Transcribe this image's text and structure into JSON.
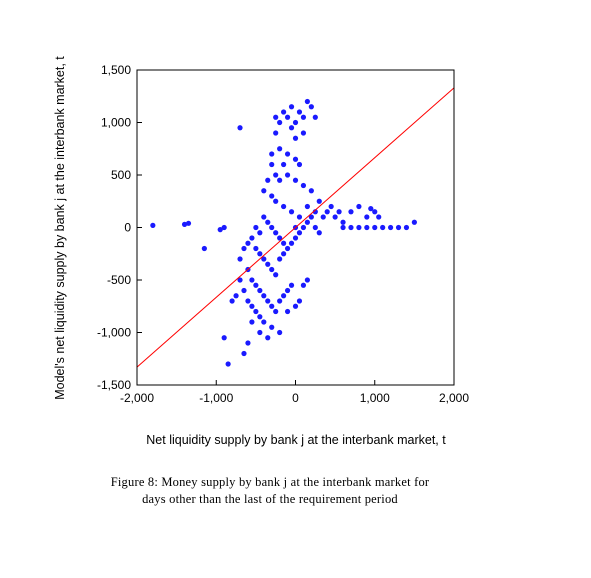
{
  "chart_data": {
    "type": "scatter",
    "title": "",
    "xlabel": "Net liquidity supply by bank j at the interbank market, t",
    "ylabel": "Model's net liquidity supply by bank j at the interbank market, t",
    "xlim": [
      -2000,
      2000
    ],
    "ylim": [
      -1500,
      1500
    ],
    "xticks": [
      -2000,
      -1000,
      0,
      1000,
      2000
    ],
    "xtick_labels": [
      "-2,000",
      "-1,000",
      "0",
      "1,000",
      "2,000"
    ],
    "yticks": [
      -1500,
      -1000,
      -500,
      0,
      500,
      1000,
      1500
    ],
    "ytick_labels": [
      "-1,500",
      "-1,000",
      "-500",
      "0",
      "500",
      "1,000",
      "1,500"
    ],
    "grid": false,
    "marker_color": "#1a1aff",
    "line_color": "#ff0000",
    "reference_line": {
      "x": [
        -2000,
        2000
      ],
      "y": [
        -1330,
        1330
      ]
    },
    "points": [
      [
        -1800,
        20
      ],
      [
        -1400,
        30
      ],
      [
        -1350,
        40
      ],
      [
        -1150,
        -200
      ],
      [
        -900,
        -1050
      ],
      [
        -850,
        -1300
      ],
      [
        -700,
        950
      ],
      [
        -650,
        -1200
      ],
      [
        -600,
        -1100
      ],
      [
        -550,
        -900
      ],
      [
        -900,
        0
      ],
      [
        -950,
        -20
      ],
      [
        -200,
        1000
      ],
      [
        -150,
        1100
      ],
      [
        -100,
        1050
      ],
      [
        0,
        1000
      ],
      [
        50,
        1100
      ],
      [
        100,
        1050
      ],
      [
        150,
        1200
      ],
      [
        200,
        1150
      ],
      [
        -50,
        950
      ],
      [
        -250,
        900
      ],
      [
        0,
        850
      ],
      [
        100,
        900
      ],
      [
        -300,
        700
      ],
      [
        -200,
        750
      ],
      [
        -100,
        700
      ],
      [
        0,
        650
      ],
      [
        -150,
        600
      ],
      [
        50,
        600
      ],
      [
        -250,
        500
      ],
      [
        -200,
        450
      ],
      [
        -100,
        500
      ],
      [
        0,
        450
      ],
      [
        100,
        400
      ],
      [
        200,
        350
      ],
      [
        -300,
        300
      ],
      [
        -250,
        250
      ],
      [
        -150,
        200
      ],
      [
        -50,
        150
      ],
      [
        50,
        100
      ],
      [
        150,
        200
      ],
      [
        250,
        150
      ],
      [
        300,
        250
      ],
      [
        350,
        100
      ],
      [
        400,
        150
      ],
      [
        450,
        200
      ],
      [
        500,
        100
      ],
      [
        550,
        150
      ],
      [
        600,
        50
      ],
      [
        700,
        150
      ],
      [
        800,
        200
      ],
      [
        900,
        100
      ],
      [
        1000,
        150
      ],
      [
        600,
        0
      ],
      [
        700,
        0
      ],
      [
        800,
        0
      ],
      [
        900,
        0
      ],
      [
        1000,
        0
      ],
      [
        1100,
        0
      ],
      [
        1200,
        0
      ],
      [
        1300,
        0
      ],
      [
        1400,
        0
      ],
      [
        1500,
        50
      ],
      [
        1050,
        100
      ],
      [
        950,
        180
      ],
      [
        -400,
        100
      ],
      [
        -350,
        50
      ],
      [
        -300,
        0
      ],
      [
        -250,
        -50
      ],
      [
        -200,
        -100
      ],
      [
        -150,
        -150
      ],
      [
        -500,
        -200
      ],
      [
        -450,
        -250
      ],
      [
        -400,
        -300
      ],
      [
        -350,
        -350
      ],
      [
        -300,
        -400
      ],
      [
        -250,
        -450
      ],
      [
        -600,
        -400
      ],
      [
        -550,
        -500
      ],
      [
        -500,
        -550
      ],
      [
        -450,
        -600
      ],
      [
        -400,
        -650
      ],
      [
        -350,
        -700
      ],
      [
        -650,
        -600
      ],
      [
        -600,
        -700
      ],
      [
        -550,
        -750
      ],
      [
        -500,
        -800
      ],
      [
        -450,
        -850
      ],
      [
        -400,
        -900
      ],
      [
        -300,
        -750
      ],
      [
        -250,
        -800
      ],
      [
        -200,
        -700
      ],
      [
        -150,
        -650
      ],
      [
        -100,
        -600
      ],
      [
        -50,
        -550
      ],
      [
        -200,
        -300
      ],
      [
        -150,
        -250
      ],
      [
        -100,
        -200
      ],
      [
        -50,
        -150
      ],
      [
        0,
        -100
      ],
      [
        50,
        -50
      ],
      [
        100,
        0
      ],
      [
        150,
        50
      ],
      [
        200,
        100
      ],
      [
        250,
        0
      ],
      [
        300,
        -50
      ],
      [
        0,
        0
      ],
      [
        -700,
        -500
      ],
      [
        -750,
        -650
      ],
      [
        -800,
        -700
      ],
      [
        -200,
        -1000
      ],
      [
        -300,
        -950
      ],
      [
        -350,
        -1050
      ],
      [
        -100,
        -800
      ],
      [
        0,
        -750
      ],
      [
        50,
        -700
      ],
      [
        100,
        -550
      ],
      [
        150,
        -500
      ],
      [
        -450,
        -1000
      ],
      [
        -250,
        1050
      ],
      [
        -50,
        1150
      ],
      [
        250,
        1050
      ],
      [
        -300,
        600
      ],
      [
        -350,
        450
      ],
      [
        -400,
        350
      ],
      [
        -500,
        0
      ],
      [
        -450,
        -50
      ],
      [
        -550,
        -100
      ],
      [
        -600,
        -150
      ],
      [
        -650,
        -200
      ],
      [
        -700,
        -300
      ]
    ]
  },
  "caption": {
    "line1": "Figure 8: Money supply by bank j at the interbank market for",
    "line2": "days other than the last of the requirement period"
  }
}
